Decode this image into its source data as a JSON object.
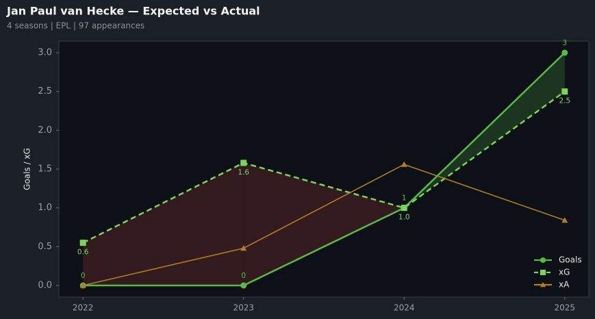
{
  "chart_data": {
    "type": "line",
    "title": "Jan Paul van Hecke — Expected vs Actual",
    "subtitle": "4 seasons | EPL | 97 appearances",
    "y_label": "Goals / xG",
    "x": [
      2022,
      2023,
      2024,
      2025
    ],
    "xlim": [
      2021.85,
      2025.15
    ],
    "xticks": [
      2022,
      2023,
      2024,
      2025
    ],
    "ylim": [
      -0.15,
      3.15
    ],
    "yticks": [
      {
        "value": 0,
        "label": "0.0"
      },
      0.5,
      {
        "value": 1,
        "label": "1.0"
      },
      1.5,
      {
        "value": 2,
        "label": "2.0"
      },
      2.5,
      {
        "value": 3,
        "label": "3.0"
      }
    ],
    "legend": "lower right",
    "series": [
      {
        "name": "Goals",
        "color": "#5cb848",
        "marker": "circle",
        "dash": false,
        "values": [
          0,
          0,
          1,
          3
        ]
      },
      {
        "name": "xG",
        "color": "#7dd35e",
        "marker": "square",
        "dash": true,
        "values": [
          0.55,
          1.58,
          1.0,
          2.5
        ],
        "value_labels": [
          "0.6",
          "1.6",
          "1.0",
          "2.5"
        ]
      },
      {
        "name": "xA",
        "color": "#b07f24",
        "marker": "triangle",
        "dash": false,
        "values": [
          0,
          0.48,
          1.56,
          0.84
        ]
      }
    ]
  }
}
